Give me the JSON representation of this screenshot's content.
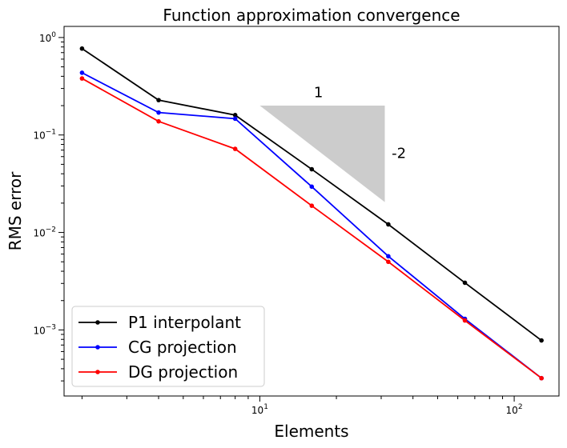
{
  "chart_data": {
    "type": "line",
    "title": "Function approximation convergence",
    "xlabel": "Elements",
    "ylabel": "RMS error",
    "xscale": "log",
    "yscale": "log",
    "xlim": [
      1.7,
      150
    ],
    "ylim": [
      0.00021,
      1.3
    ],
    "x_ticks": [
      {
        "value": 10,
        "base": "10",
        "exp": "1"
      },
      {
        "value": 100,
        "base": "10",
        "exp": "2"
      }
    ],
    "y_ticks": [
      {
        "value": 0.001,
        "base": "10",
        "exp": "−3"
      },
      {
        "value": 0.01,
        "base": "10",
        "exp": "−2"
      },
      {
        "value": 0.1,
        "base": "10",
        "exp": "−1"
      },
      {
        "value": 1,
        "base": "10",
        "exp": "0"
      }
    ],
    "grid": false,
    "legend_position": "bottom-left",
    "x": [
      2,
      4,
      8,
      16,
      32,
      64,
      128
    ],
    "series": [
      {
        "name": "P1 interpolant",
        "color": "#000000",
        "values": [
          0.77,
          0.228,
          0.16,
          0.0445,
          0.0121,
          0.00305,
          0.00078
        ]
      },
      {
        "name": "CG projection",
        "color": "#0000ff",
        "values": [
          0.435,
          0.17,
          0.147,
          0.0295,
          0.0057,
          0.0013,
          0.00032
        ]
      },
      {
        "name": "DG projection",
        "color": "#ff0000",
        "values": [
          0.38,
          0.138,
          0.072,
          0.0188,
          0.005,
          0.00125,
          0.00032
        ]
      }
    ],
    "slope_triangle": {
      "points": [
        [
          10,
          0.2
        ],
        [
          31,
          0.2
        ],
        [
          31,
          0.0205
        ]
      ],
      "color": "#cccccc",
      "run_label": "1",
      "run_label_at": [
        17,
        0.245
      ],
      "rise_label": "-2",
      "rise_label_at": [
        33,
        0.058
      ]
    }
  }
}
